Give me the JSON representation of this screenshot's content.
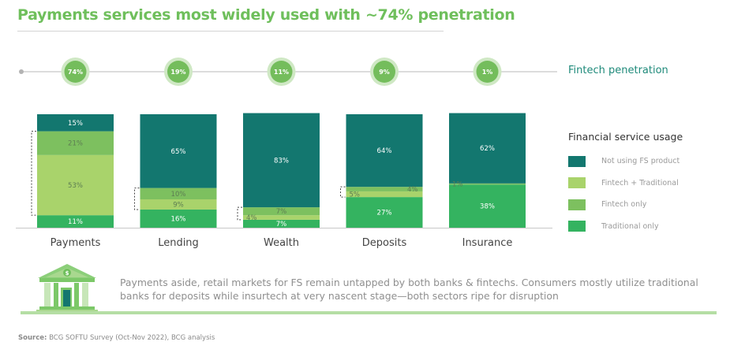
{
  "title": "Payments services most widely used with ~74% penetration",
  "penetration_label": "Fintech penetration",
  "legend_title": "Financial service usage",
  "insight_text": "Payments aside, retail markets for FS remain untapped by both banks & fintechs. Consumers mostly utilize traditional banks for deposits while insurtech at very nascent stage—both sectors ripe for disruption",
  "source_label": "Source:",
  "source_text": " BCG SOFTU Survey (Oct-Nov 2022), BCG analysis",
  "icons": {
    "insight": "bank-building-dollar-icon"
  },
  "colors": {
    "title": "#6fbf5c",
    "not_using": "#13776f",
    "fintech_traditional": "#a9d36b",
    "fintech_only": "#7dc05f",
    "traditional_only": "#34b360",
    "circle": "#74bd5c",
    "circle_halo": "#cfe8c4"
  },
  "chart_data": {
    "type": "bar",
    "stacked": true,
    "title": "Payments services most widely used with ~74% penetration",
    "xlabel": "",
    "ylabel": "",
    "ylim": [
      0,
      100
    ],
    "grid": false,
    "legend_position": "right",
    "categories": [
      "Payments",
      "Lending",
      "Wealth",
      "Deposits",
      "Insurance"
    ],
    "series": [
      {
        "name": "Traditional only",
        "color": "#34b360",
        "values": [
          11,
          16,
          7,
          27,
          38
        ]
      },
      {
        "name": "Fintech + Traditional",
        "color": "#a9d36b",
        "values": [
          53,
          9,
          4,
          5,
          0
        ]
      },
      {
        "name": "Fintech only",
        "color": "#7dc05f",
        "values": [
          21,
          10,
          7,
          4,
          1
        ]
      },
      {
        "name": "Not using FS product",
        "color": "#13776f",
        "values": [
          15,
          65,
          83,
          64,
          62
        ]
      }
    ],
    "legend_order": [
      "Not using FS product",
      "Fintech + Traditional",
      "Fintech only",
      "Traditional only"
    ],
    "fintech_penetration": {
      "label": "Fintech penetration",
      "values": [
        74,
        19,
        11,
        9,
        1
      ]
    }
  }
}
